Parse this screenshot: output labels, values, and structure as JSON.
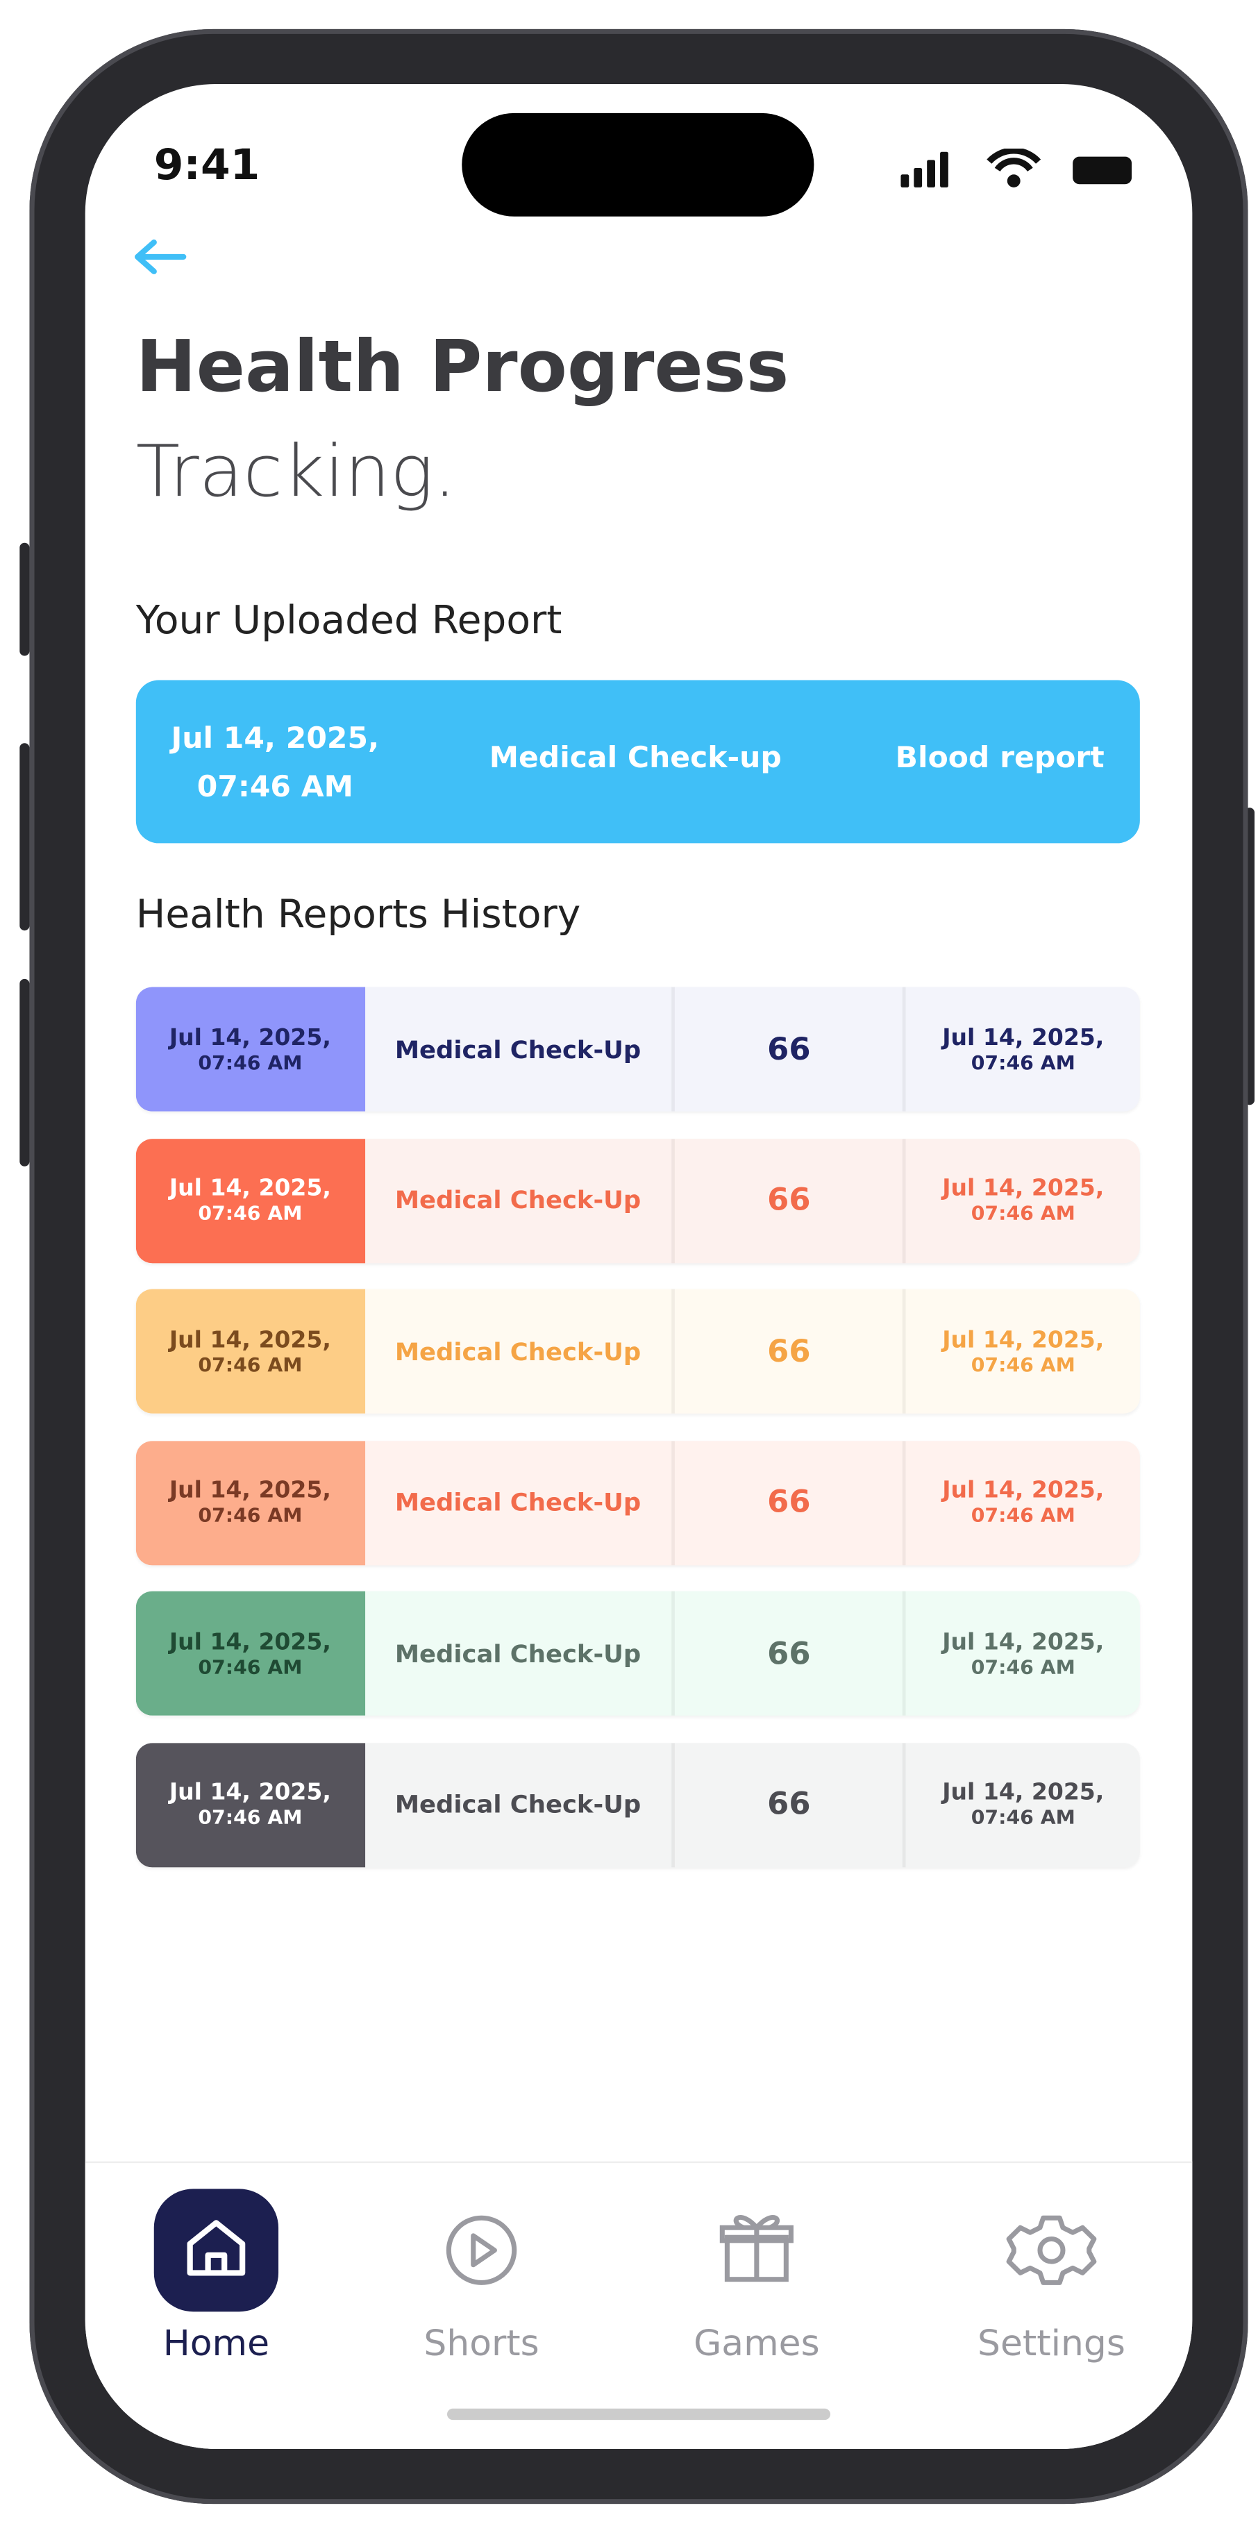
{
  "status_bar": {
    "time": "9:41"
  },
  "header": {
    "title": "Health Progress",
    "subtitle": "Tracking."
  },
  "uploaded": {
    "heading": "Your Uploaded Report",
    "date": "Jul 14, 2025,",
    "time": "07:46 AM",
    "type": "Medical Check-up",
    "report": "Blood report"
  },
  "history": {
    "heading": "Health Reports History",
    "rows": [
      {
        "date": "Jul 14, 2025,",
        "time": "07:46 AM",
        "name": "Medical Check-Up",
        "score": "66",
        "date2": "Jul 14, 2025,",
        "time2": "07:46 AM"
      },
      {
        "date": "Jul 14, 2025,",
        "time": "07:46 AM",
        "name": "Medical Check-Up",
        "score": "66",
        "date2": "Jul 14, 2025,",
        "time2": "07:46 AM"
      },
      {
        "date": "Jul 14, 2025,",
        "time": "07:46 AM",
        "name": "Medical Check-Up",
        "score": "66",
        "date2": "Jul 14, 2025,",
        "time2": "07:46 AM"
      },
      {
        "date": "Jul 14, 2025,",
        "time": "07:46 AM",
        "name": "Medical Check-Up",
        "score": "66",
        "date2": "Jul 14, 2025,",
        "time2": "07:46 AM"
      },
      {
        "date": "Jul 14, 2025,",
        "time": "07:46 AM",
        "name": "Medical Check-Up",
        "score": "66",
        "date2": "Jul 14, 2025,",
        "time2": "07:46 AM"
      },
      {
        "date": "Jul 14, 2025,",
        "time": "07:46 AM",
        "name": "Medical Check-Up",
        "score": "66",
        "date2": "Jul 14, 2025,",
        "time2": "07:46 AM"
      }
    ]
  },
  "nav": {
    "items": [
      "Home",
      "Shorts",
      "Games",
      "Settings"
    ]
  }
}
